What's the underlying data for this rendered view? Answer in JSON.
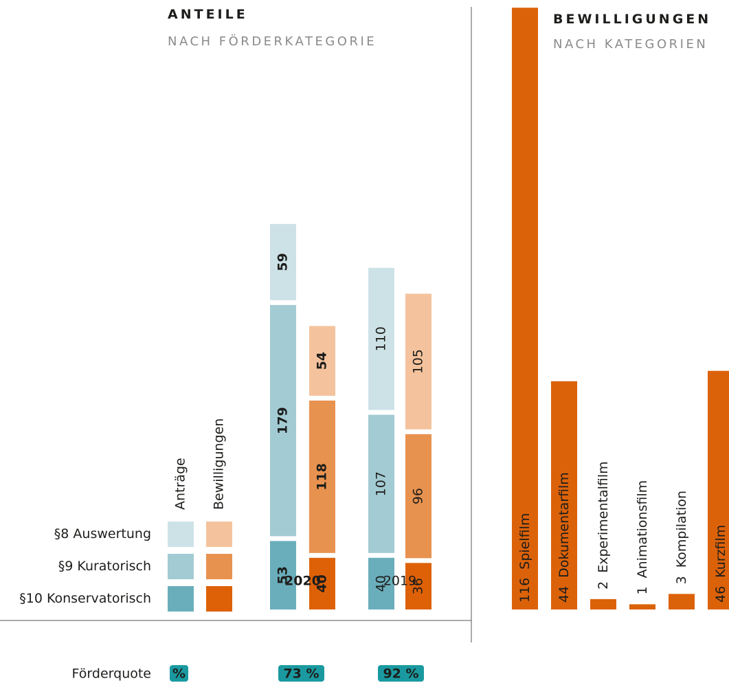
{
  "chart_data": [
    {
      "type": "stacked_bar",
      "title": "ANTEILE",
      "subtitle": "NACH FÖRDERKATEGORIE",
      "categories": [
        "2020",
        "2019"
      ],
      "highlight_index": 0,
      "segments": [
        "§10 Konservatorisch",
        "§9 Kuratorisch",
        "§8 Auswertung"
      ],
      "groups": [
        {
          "name": "Anträge",
          "colors": [
            "#6aaebb",
            "#a3cbd3",
            "#cde2e7"
          ],
          "text_colors": [
            "#ffffff",
            "#ffffff",
            "#1d1d1b"
          ],
          "values": [
            [
              53,
              40
            ],
            [
              179,
              107
            ],
            [
              59,
              110
            ]
          ]
        },
        {
          "name": "Bewilligungen",
          "colors": [
            "#de6108",
            "#e89250",
            "#f4c39d"
          ],
          "text_colors": [
            "#ffffff",
            "#ffffff",
            "#1d1d1b"
          ],
          "values": [
            [
              40,
              36
            ],
            [
              118,
              96
            ],
            [
              54,
              105
            ]
          ]
        }
      ],
      "quota": {
        "label": "Förderquote",
        "unit": "%",
        "values": [
          73,
          92
        ],
        "value_labels": [
          "73 %",
          "92 %"
        ],
        "color": "#1a9aa0"
      }
    },
    {
      "type": "bar",
      "title": "BEWILLIGUNGEN",
      "subtitle": "NACH KATEGORIEN",
      "categories": [
        "Spielfilm",
        "Dokumentarfilm",
        "Experimentalfilm",
        "Animationsfilm",
        "Kompilation",
        "Kurzfilm"
      ],
      "values": [
        116,
        44,
        2,
        1,
        3,
        46
      ],
      "color": "#dc6209"
    }
  ]
}
